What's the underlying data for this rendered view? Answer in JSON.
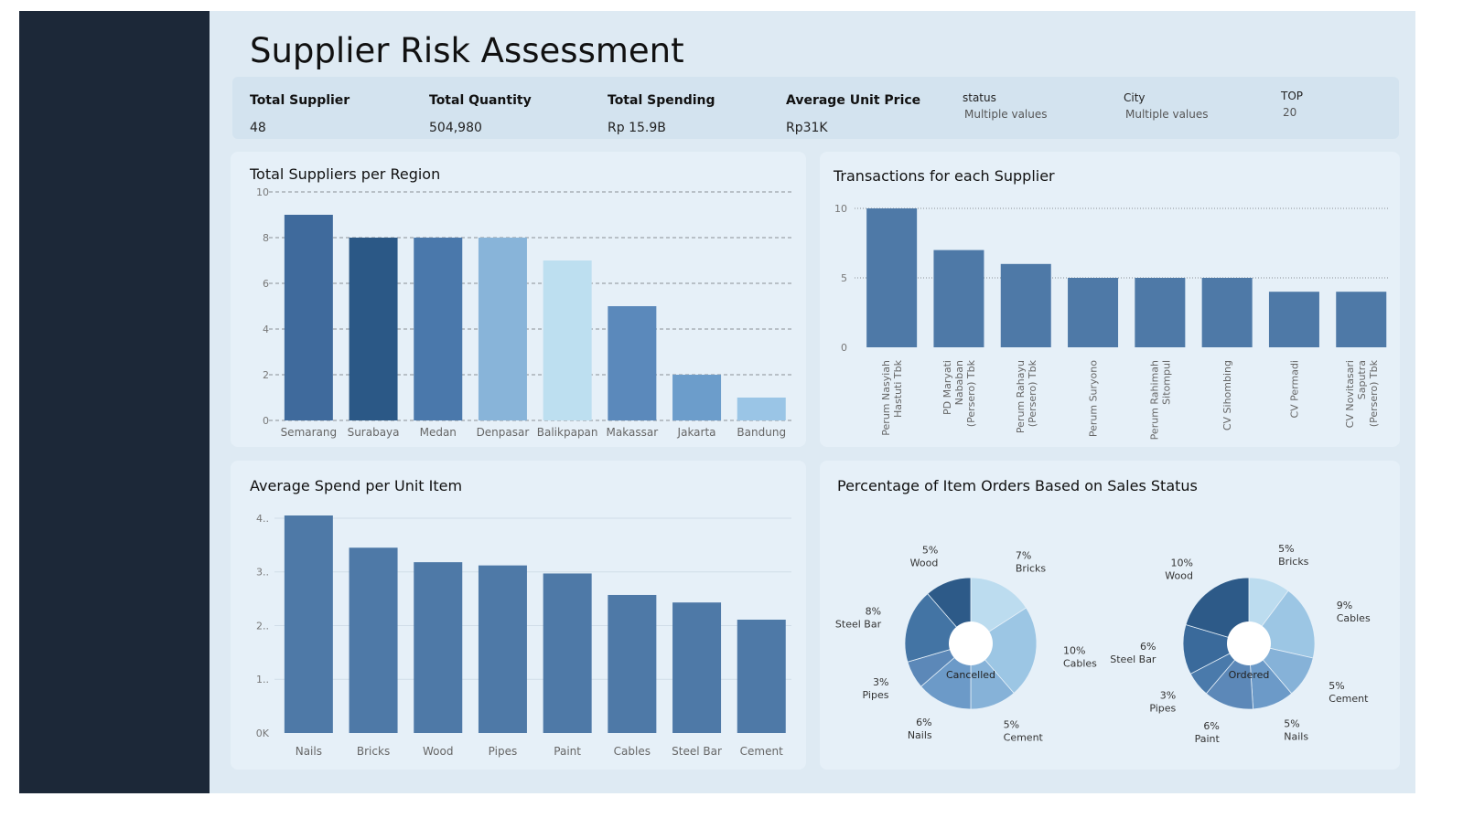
{
  "header": {
    "title": "Supplier Risk Assessment"
  },
  "kpis": [
    {
      "label": "Total Supplier",
      "value": "48"
    },
    {
      "label": "Total Quantity",
      "value": "504,980"
    },
    {
      "label": "Total Spending",
      "value": "Rp 15.9B"
    },
    {
      "label": "Average Unit Price",
      "value": "Rp31K"
    }
  ],
  "filters": [
    {
      "label": "status",
      "value": "Multiple values"
    },
    {
      "label": "City",
      "value": "Multiple values"
    },
    {
      "label": "TOP",
      "value": "20"
    }
  ],
  "chart_data": [
    {
      "id": "region",
      "type": "bar",
      "title": "Total Suppliers per Region",
      "categories": [
        "Semarang",
        "Surabaya",
        "Medan",
        "Denpasar",
        "Balikpapan",
        "Makassar",
        "Jakarta",
        "Bandung"
      ],
      "values": [
        9,
        8,
        8,
        8,
        7,
        5,
        2,
        1
      ],
      "colors": [
        "#3f6a9c",
        "#2b5886",
        "#4a78ab",
        "#88b4d9",
        "#bddff0",
        "#5b89bb",
        "#6c9dcb",
        "#9ac5e6"
      ],
      "ylim": [
        0,
        10
      ],
      "yticks": [
        0,
        2,
        4,
        6,
        8,
        10
      ],
      "grid": "dashed"
    },
    {
      "id": "supplier",
      "type": "bar",
      "title": "Transactions for each Supplier",
      "categories": [
        [
          "Perum Nasyiah",
          "Hastuti Tbk"
        ],
        [
          "PD Maryati",
          "Nababan",
          "(Persero) Tbk"
        ],
        [
          "Perum Rahayu",
          "(Persero) Tbk"
        ],
        [
          "Perum Suryono"
        ],
        [
          "Perum Rahimah",
          "Sitompul"
        ],
        [
          "CV Sihombing"
        ],
        [
          "CV Permadi"
        ],
        [
          "CV Novitasari",
          "Saputra",
          "(Persero) Tbk"
        ]
      ],
      "values": [
        10,
        7,
        6,
        5,
        5,
        5,
        4,
        4
      ],
      "color": "#4e79a7",
      "ylim": [
        0,
        10
      ],
      "yticks": [
        0,
        5,
        10
      ],
      "grid": "dotted"
    },
    {
      "id": "spend",
      "type": "bar",
      "title": "Average Spend per Unit Item",
      "categories": [
        "Nails",
        "Bricks",
        "Wood",
        "Pipes",
        "Paint",
        "Cables",
        "Steel Bar",
        "Cement"
      ],
      "values": [
        40500,
        34500,
        31800,
        31200,
        29700,
        25700,
        24300,
        21100
      ],
      "color": "#4e79a7",
      "ylim": [
        0,
        40500
      ],
      "yticks": [
        0,
        10000,
        20000,
        30000,
        40000
      ],
      "ytick_labels": [
        "0K",
        "1..",
        "2..",
        "3..",
        "4.."
      ],
      "grid": "solid"
    },
    {
      "id": "status",
      "type": "pie",
      "title": "Percentage of Item Orders Based on Sales Status",
      "pies": [
        {
          "center_label": "Cancelled",
          "slices": [
            {
              "name": "Bricks",
              "pct": "7%",
              "value": 7,
              "color": "#bcdcef"
            },
            {
              "name": "Cables",
              "pct": "10%",
              "value": 10,
              "color": "#9cc6e4"
            },
            {
              "name": "Cement",
              "pct": "5%",
              "value": 5,
              "color": "#86b2d8"
            },
            {
              "name": "Nails",
              "pct": "6%",
              "value": 6,
              "color": "#6c9ac8"
            },
            {
              "name": "Pipes",
              "pct": "3%",
              "value": 3,
              "color": "#5c88b8"
            },
            {
              "name": "Steel Bar",
              "pct": "8%",
              "value": 8,
              "color": "#4374a4"
            },
            {
              "name": "Wood",
              "pct": "5%",
              "value": 5,
              "color": "#2d5a88"
            }
          ]
        },
        {
          "center_label": "Ordered",
          "slices": [
            {
              "name": "Bricks",
              "pct": "5%",
              "value": 5,
              "color": "#bcdcef"
            },
            {
              "name": "Cables",
              "pct": "9%",
              "value": 9,
              "color": "#9cc6e4"
            },
            {
              "name": "Cement",
              "pct": "5%",
              "value": 5,
              "color": "#86b2d8"
            },
            {
              "name": "Nails",
              "pct": "5%",
              "value": 5,
              "color": "#6c9ac8"
            },
            {
              "name": "Paint",
              "pct": "6%",
              "value": 6,
              "color": "#5c88b8"
            },
            {
              "name": "Pipes",
              "pct": "3%",
              "value": 3,
              "color": "#4a7aab"
            },
            {
              "name": "Steel Bar",
              "pct": "6%",
              "value": 6,
              "color": "#3a6a9b"
            },
            {
              "name": "Wood",
              "pct": "10%",
              "value": 10,
              "color": "#2d5a88"
            }
          ]
        }
      ]
    }
  ]
}
